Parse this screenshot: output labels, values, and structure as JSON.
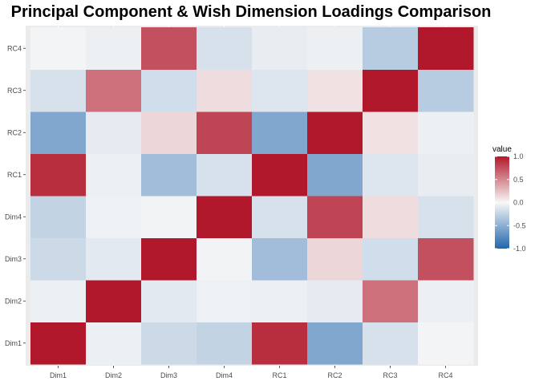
{
  "chart_data": {
    "type": "heatmap",
    "title": "Principal Component & Wish Dimension Loadings Comparison",
    "x_categories": [
      "Dim1",
      "Dim2",
      "Dim3",
      "Dim4",
      "RC1",
      "RC2",
      "RC3",
      "RC4"
    ],
    "y_categories": [
      "Dim1",
      "Dim2",
      "Dim3",
      "Dim4",
      "RC1",
      "RC2",
      "RC3",
      "RC4"
    ],
    "values": [
      [
        1.0,
        -0.05,
        -0.2,
        -0.25,
        0.9,
        -0.55,
        -0.15,
        -0.02
      ],
      [
        -0.05,
        1.0,
        -0.1,
        -0.04,
        -0.05,
        -0.08,
        0.6,
        -0.05
      ],
      [
        -0.2,
        -0.1,
        1.0,
        -0.03,
        -0.4,
        0.15,
        -0.18,
        0.75
      ],
      [
        -0.25,
        -0.04,
        -0.03,
        1.0,
        -0.15,
        0.8,
        0.12,
        -0.15
      ],
      [
        0.9,
        -0.05,
        -0.4,
        -0.15,
        1.0,
        -0.55,
        -0.12,
        -0.07
      ],
      [
        -0.55,
        -0.08,
        0.15,
        0.8,
        -0.55,
        1.0,
        0.1,
        -0.05
      ],
      [
        -0.15,
        0.6,
        -0.18,
        0.12,
        -0.12,
        0.1,
        1.0,
        -0.3
      ],
      [
        -0.02,
        -0.05,
        0.75,
        -0.15,
        -0.07,
        -0.05,
        -0.3,
        1.0
      ]
    ],
    "value_range": [
      -1,
      1
    ],
    "color_scale": {
      "low": "#2166ac",
      "mid": "#f7f7f7",
      "high": "#b2182b"
    },
    "legend": {
      "title": "value",
      "ticks": [
        1.0,
        0.5,
        0.0,
        -0.5,
        -1.0
      ],
      "tick_labels": [
        "1.0",
        "0.5",
        "0.0",
        "-0.5",
        "-1.0"
      ],
      "position": "right"
    },
    "panel_background": "#ebebeb",
    "grid": true
  }
}
